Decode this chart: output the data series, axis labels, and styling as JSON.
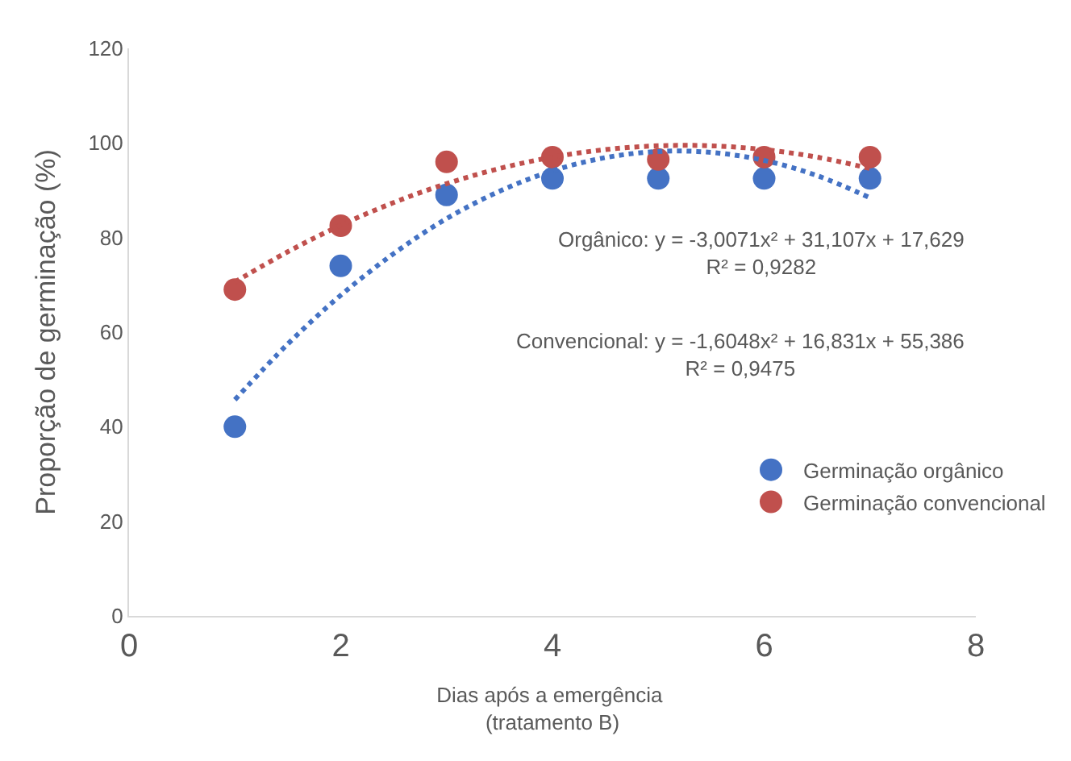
{
  "chart_data": {
    "type": "scatter",
    "xlabel": "Dias após a emergência $_{}$(tratamento B)",
    "ylabel": "Proporção de germinação (%)",
    "xlim": [
      0,
      8
    ],
    "xticks": [
      0,
      2,
      4,
      6,
      8
    ],
    "ylim": [
      0,
      120
    ],
    "yticks": [
      0,
      20,
      40,
      60,
      80,
      100,
      120
    ],
    "legend": "right",
    "marker": "circle",
    "series": [
      {
        "name": "Germinação orgânico",
        "color": "#4472c4",
        "x": [
          1,
          2,
          3,
          4,
          5,
          6,
          7
        ],
        "values": [
          40,
          74,
          89,
          92.5,
          92.5,
          92.5,
          92.5
        ]
      },
      {
        "name": "Germinação convencional",
        "color": "#c0504d",
        "x": [
          1,
          2,
          3,
          4,
          5,
          6,
          7
        ],
        "values": [
          69,
          82.5,
          96,
          97,
          96.5,
          97,
          97
        ]
      },
      {
        "type": "line",
        "color": "#4472c4",
        "line_style": "dotted",
        "marker": "none",
        "x": [
          1,
          1.5,
          2,
          2.5,
          3,
          3.5,
          4,
          4.5,
          5,
          5.5,
          6,
          6.5,
          7
        ],
        "values": [
          45.7,
          57.5,
          67.8,
          76.6,
          84.0,
          89.8,
          94.1,
          96.9,
          98.2,
          98.0,
          96.3,
          93.1,
          88.4
        ]
      },
      {
        "type": "line",
        "color": "#c0504d",
        "line_style": "dotted",
        "marker": "none",
        "x": [
          1,
          1.5,
          2,
          2.5,
          3,
          3.5,
          4,
          4.5,
          5,
          5.5,
          6,
          6.5,
          7
        ],
        "values": [
          70.6,
          77.0,
          82.6,
          87.4,
          91.4,
          94.6,
          97.0,
          98.6,
          99.4,
          99.4,
          98.6,
          97.0,
          94.6
        ]
      }
    ],
    "annotations": [
      "Orgânico: y = -3,0071x² + 31,107x + 17,629\nR² = 0,9282",
      "Convencional: y = -1,6048x² + 16,831x + 55,386\nR² = 0,9475"
    ]
  }
}
